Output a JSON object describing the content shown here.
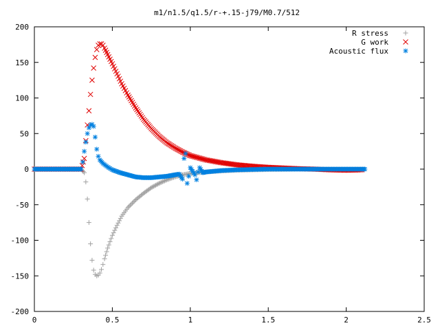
{
  "chart_data": {
    "type": "scatter",
    "title": "m1/n1.5/q1.5/r-+.15-j79/M0.7/512",
    "xlabel": "",
    "ylabel": "",
    "xlim": [
      0,
      2.5
    ],
    "ylim": [
      -200,
      200
    ],
    "x_ticks": [
      "0",
      "0.5",
      "1",
      "1.5",
      "2",
      "2.5"
    ],
    "y_ticks": [
      "200",
      "150",
      "100",
      "50",
      "0",
      "-50",
      "-100",
      "-150",
      "-200"
    ],
    "grid": false,
    "legend_position": "top-right",
    "series": [
      {
        "name": "R stress",
        "marker": "plus",
        "color": "#a0a0a0",
        "points": [
          [
            0.0,
            0
          ],
          [
            0.05,
            0
          ],
          [
            0.1,
            0
          ],
          [
            0.15,
            0
          ],
          [
            0.2,
            0
          ],
          [
            0.25,
            0
          ],
          [
            0.3,
            0
          ],
          [
            0.32,
            -5
          ],
          [
            0.33,
            -18
          ],
          [
            0.34,
            -42
          ],
          [
            0.35,
            -75
          ],
          [
            0.36,
            -105
          ],
          [
            0.37,
            -128
          ],
          [
            0.38,
            -142
          ],
          [
            0.39,
            -148
          ],
          [
            0.4,
            -150
          ],
          [
            0.41,
            -149
          ],
          [
            0.42,
            -146
          ],
          [
            0.43,
            -141
          ],
          [
            0.44,
            -134
          ],
          [
            0.45,
            -126
          ],
          [
            0.47,
            -111
          ],
          [
            0.5,
            -93
          ],
          [
            0.53,
            -79
          ],
          [
            0.56,
            -66
          ],
          [
            0.6,
            -54
          ],
          [
            0.65,
            -43
          ],
          [
            0.7,
            -34
          ],
          [
            0.75,
            -26
          ],
          [
            0.8,
            -20
          ],
          [
            0.85,
            -15
          ],
          [
            0.9,
            -11
          ],
          [
            0.95,
            -8
          ],
          [
            1.0,
            -6
          ],
          [
            1.1,
            -4
          ],
          [
            1.2,
            -2.5
          ],
          [
            1.3,
            -1.5
          ],
          [
            1.4,
            -1
          ],
          [
            1.5,
            -0.5
          ],
          [
            1.6,
            -0.3
          ],
          [
            1.7,
            0
          ],
          [
            1.8,
            0
          ],
          [
            1.9,
            0
          ],
          [
            2.0,
            0
          ],
          [
            2.1,
            0
          ]
        ]
      },
      {
        "name": "G work",
        "marker": "cross",
        "color": "#e00000",
        "points": [
          [
            0.0,
            0
          ],
          [
            0.05,
            0
          ],
          [
            0.1,
            0
          ],
          [
            0.15,
            0
          ],
          [
            0.2,
            0
          ],
          [
            0.25,
            0
          ],
          [
            0.3,
            0
          ],
          [
            0.32,
            15
          ],
          [
            0.33,
            40
          ],
          [
            0.34,
            62
          ],
          [
            0.35,
            82
          ],
          [
            0.36,
            105
          ],
          [
            0.37,
            125
          ],
          [
            0.38,
            142
          ],
          [
            0.39,
            157
          ],
          [
            0.4,
            168
          ],
          [
            0.41,
            174
          ],
          [
            0.42,
            176
          ],
          [
            0.43,
            176
          ],
          [
            0.44,
            174
          ],
          [
            0.45,
            170
          ],
          [
            0.47,
            161
          ],
          [
            0.5,
            148
          ],
          [
            0.53,
            134
          ],
          [
            0.56,
            120
          ],
          [
            0.6,
            104
          ],
          [
            0.65,
            86
          ],
          [
            0.7,
            70
          ],
          [
            0.75,
            57
          ],
          [
            0.8,
            46
          ],
          [
            0.85,
            37
          ],
          [
            0.9,
            30
          ],
          [
            0.95,
            24
          ],
          [
            1.0,
            19
          ],
          [
            1.1,
            13
          ],
          [
            1.2,
            9
          ],
          [
            1.3,
            6
          ],
          [
            1.4,
            4
          ],
          [
            1.5,
            2.5
          ],
          [
            1.6,
            1.5
          ],
          [
            1.7,
            0.5
          ],
          [
            1.8,
            0
          ],
          [
            1.9,
            -1
          ],
          [
            2.0,
            -1.5
          ],
          [
            2.1,
            -1
          ]
        ]
      },
      {
        "name": "Acoustic flux",
        "marker": "star",
        "color": "#0080e0",
        "points": [
          [
            0.0,
            0
          ],
          [
            0.05,
            0
          ],
          [
            0.1,
            0
          ],
          [
            0.15,
            0
          ],
          [
            0.2,
            0
          ],
          [
            0.25,
            0
          ],
          [
            0.3,
            0
          ],
          [
            0.31,
            10
          ],
          [
            0.32,
            25
          ],
          [
            0.33,
            38
          ],
          [
            0.34,
            50
          ],
          [
            0.35,
            58
          ],
          [
            0.36,
            62
          ],
          [
            0.37,
            63
          ],
          [
            0.38,
            60
          ],
          [
            0.39,
            45
          ],
          [
            0.4,
            28
          ],
          [
            0.41,
            18
          ],
          [
            0.42,
            13
          ],
          [
            0.44,
            8
          ],
          [
            0.47,
            3
          ],
          [
            0.5,
            -1
          ],
          [
            0.55,
            -5
          ],
          [
            0.6,
            -8
          ],
          [
            0.65,
            -11
          ],
          [
            0.7,
            -12
          ],
          [
            0.75,
            -12
          ],
          [
            0.8,
            -11
          ],
          [
            0.85,
            -10
          ],
          [
            0.9,
            -8
          ],
          [
            0.93,
            -7
          ],
          [
            0.95,
            -14
          ],
          [
            0.96,
            15
          ],
          [
            0.97,
            22
          ],
          [
            0.98,
            -20
          ],
          [
            0.99,
            -10
          ],
          [
            1.0,
            2
          ],
          [
            1.03,
            -8
          ],
          [
            1.04,
            -15
          ],
          [
            1.05,
            -4
          ],
          [
            1.06,
            2
          ],
          [
            1.08,
            -5
          ],
          [
            1.1,
            -4
          ],
          [
            1.2,
            -2
          ],
          [
            1.3,
            -1
          ],
          [
            1.4,
            -0.5
          ],
          [
            1.5,
            0
          ],
          [
            1.6,
            0
          ],
          [
            1.7,
            0
          ],
          [
            1.8,
            0
          ],
          [
            1.9,
            0
          ],
          [
            2.0,
            0
          ],
          [
            2.1,
            0
          ],
          [
            2.12,
            0
          ]
        ]
      }
    ]
  }
}
